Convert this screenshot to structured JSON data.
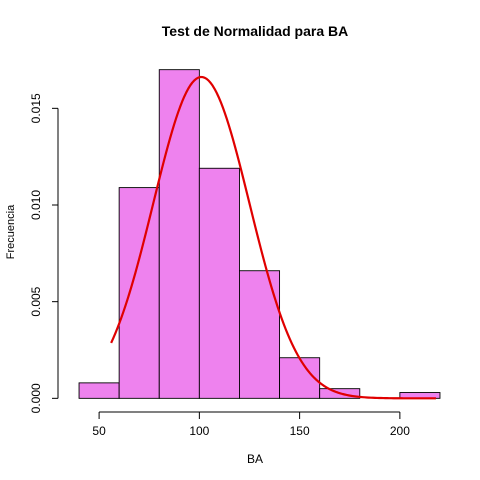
{
  "chart_data": {
    "type": "bar",
    "title": "Test de Normalidad para  BA",
    "xlabel": "BA",
    "ylabel": "Frecuencia",
    "xlim": [
      30,
      225
    ],
    "ylim": [
      -0.0005,
      0.0175
    ],
    "grid": false,
    "legend": "none",
    "bins": [
      {
        "from": 40,
        "to": 60,
        "value": 0.0008
      },
      {
        "from": 60,
        "to": 80,
        "value": 0.0109
      },
      {
        "from": 80,
        "to": 100,
        "value": 0.017
      },
      {
        "from": 100,
        "to": 120,
        "value": 0.0119
      },
      {
        "from": 120,
        "to": 140,
        "value": 0.0066
      },
      {
        "from": 140,
        "to": 160,
        "value": 0.0021
      },
      {
        "from": 160,
        "to": 180,
        "value": 0.0005
      },
      {
        "from": 180,
        "to": 200,
        "value": 0.0
      },
      {
        "from": 200,
        "to": 220,
        "value": 0.0003
      }
    ],
    "x_ticks": [
      50,
      100,
      150,
      200
    ],
    "x_tick_labels": [
      "50",
      "100",
      "150",
      "200"
    ],
    "y_ticks": [
      0.0,
      0.005,
      0.01,
      0.015
    ],
    "y_tick_labels": [
      "0.000",
      "0.005",
      "0.010",
      "0.015"
    ],
    "curve": {
      "type": "normal",
      "mean": 101,
      "sd": 24,
      "x_from": 56,
      "x_to": 218
    },
    "colors": {
      "bar_fill": "#EE82EE",
      "bar_stroke": "#000000",
      "curve": "#E00000",
      "background": "#FFFFFF"
    }
  }
}
